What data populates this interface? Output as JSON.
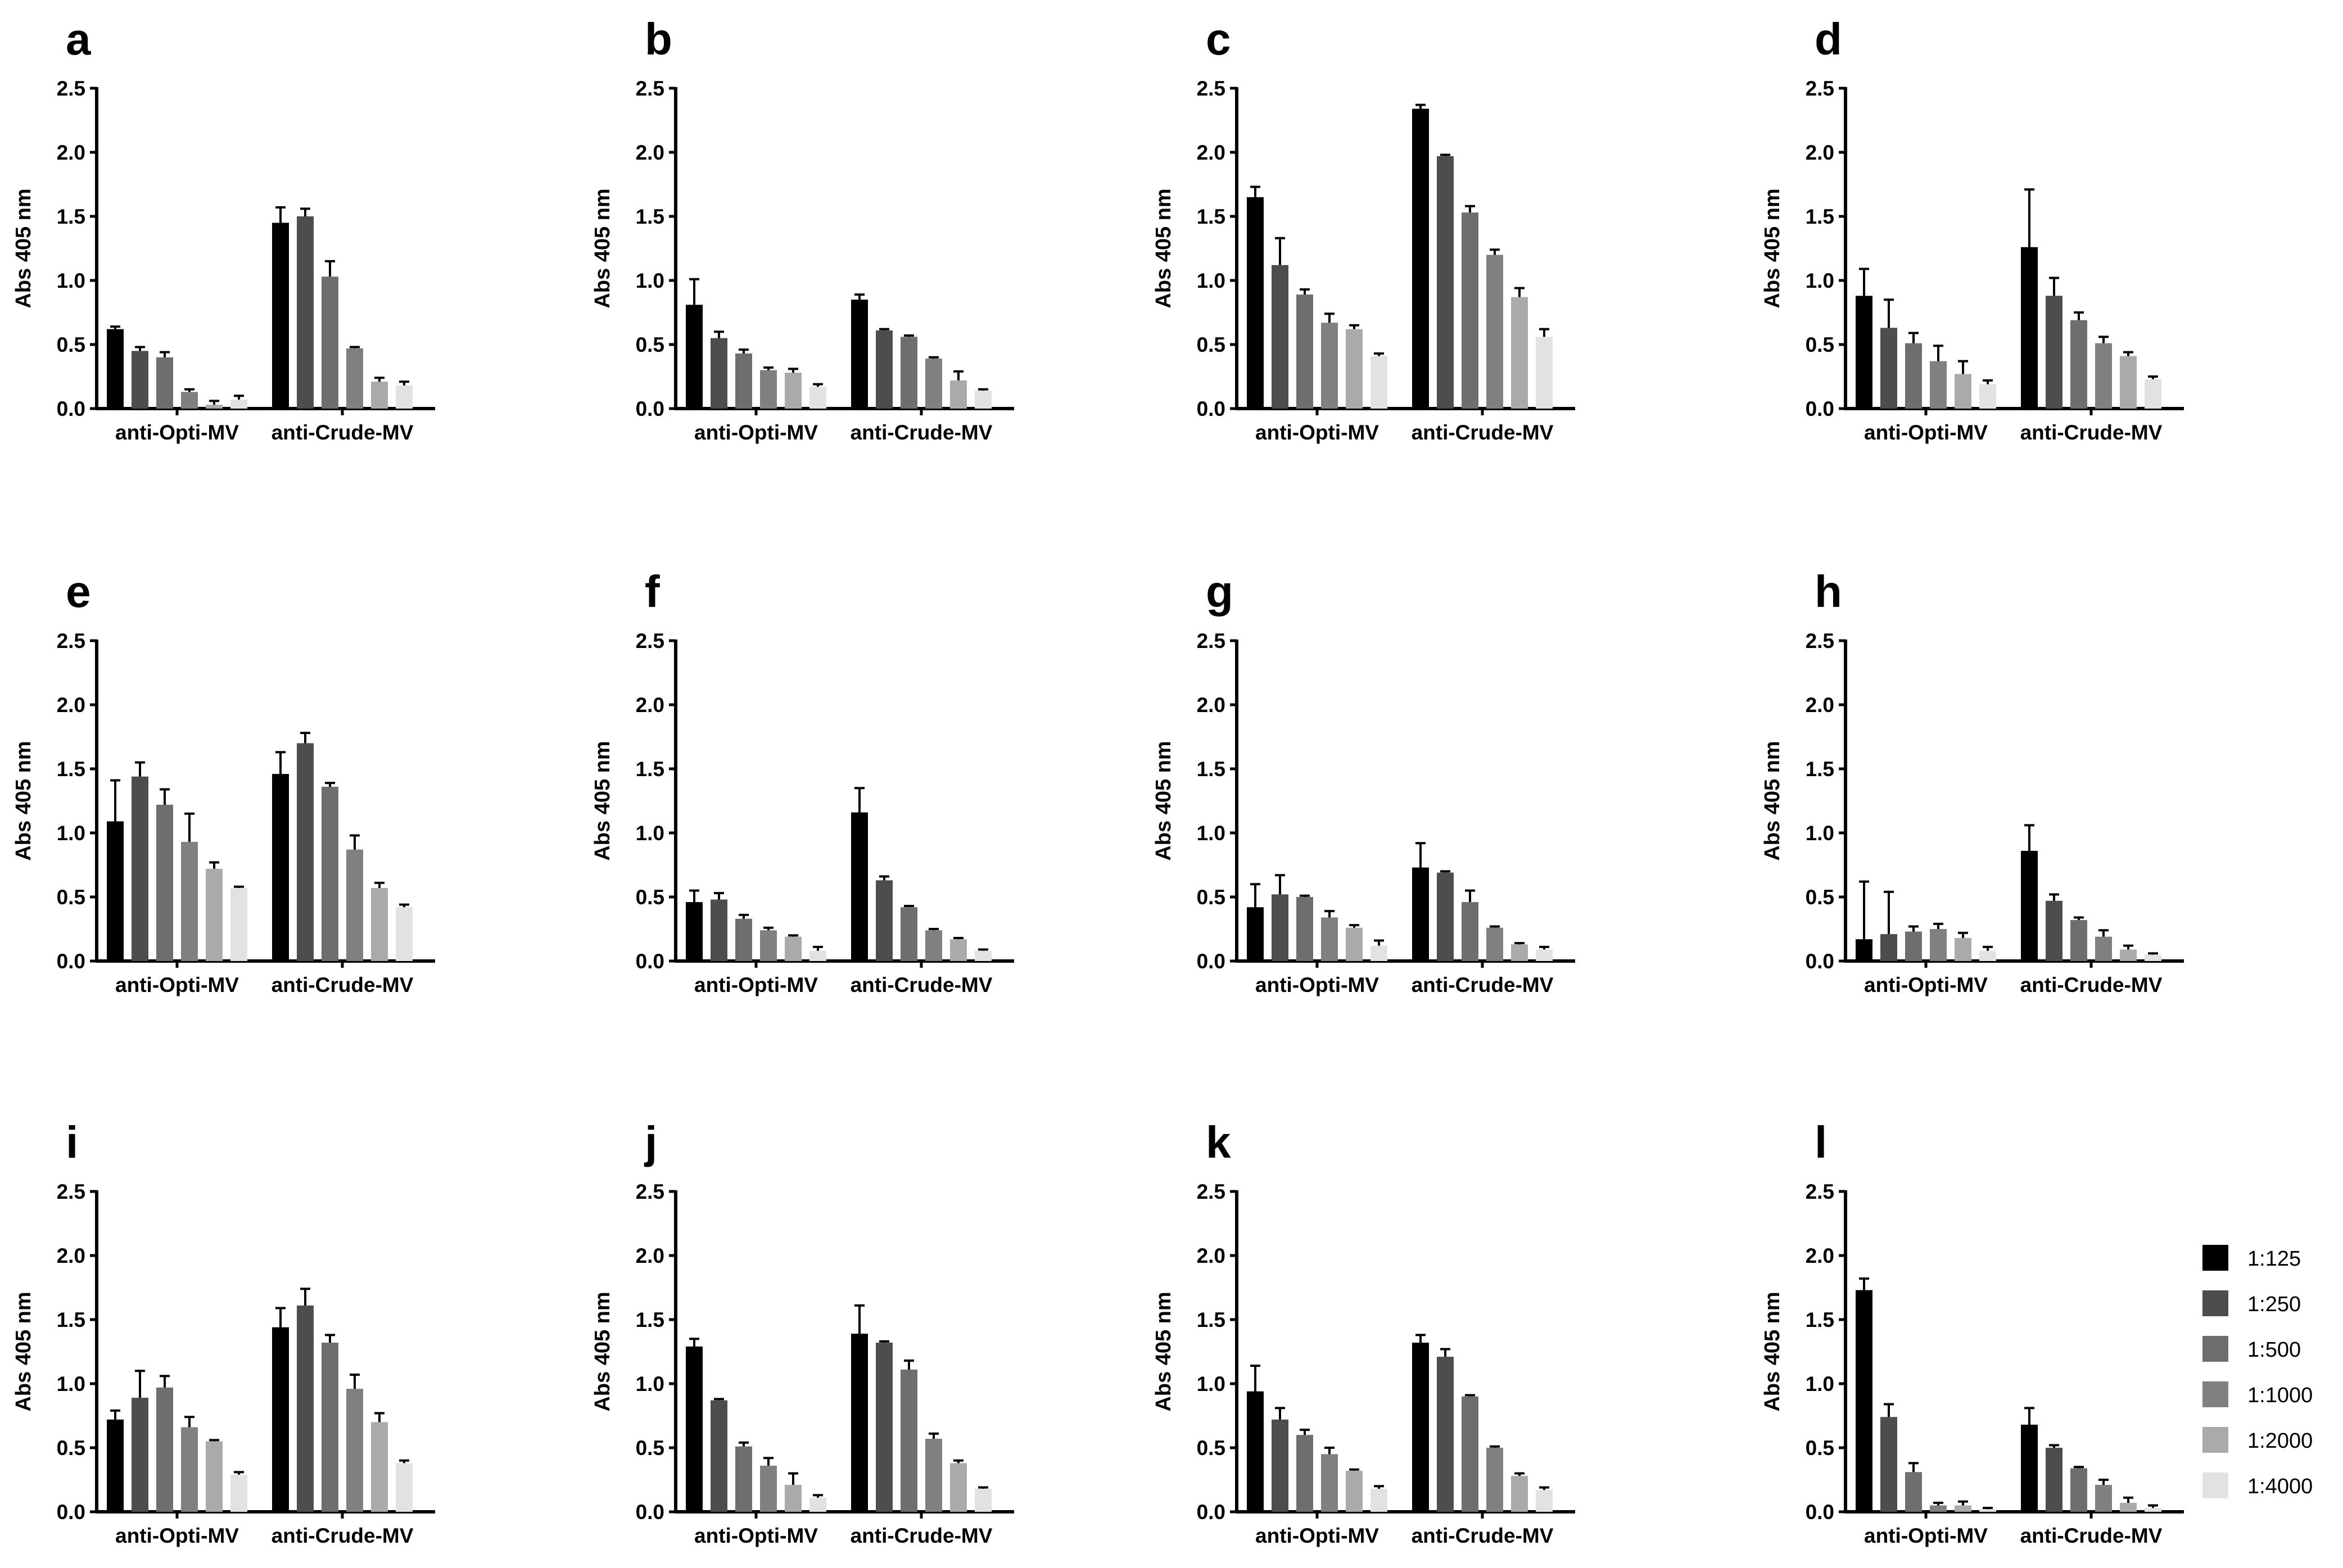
{
  "figure": {
    "legend": [
      {
        "label": "1:125",
        "color": "#000000"
      },
      {
        "label": "1:250",
        "color": "#4d4d4d"
      },
      {
        "label": "1:500",
        "color": "#6e6e6e"
      },
      {
        "label": "1:1000",
        "color": "#808080"
      },
      {
        "label": "1:2000",
        "color": "#aaaaaa"
      },
      {
        "label": "1:4000",
        "color": "#e2e2e2"
      }
    ]
  },
  "chart_data": [
    {
      "panel": "a",
      "type": "bar",
      "ylabel": "Abs 405 nm",
      "ylim": [
        0,
        2.5
      ],
      "yticks": [
        "0.0",
        "0.5",
        "1.0",
        "1.5",
        "2.0",
        "2.5"
      ],
      "categories": [
        "anti-Opti-MV",
        "anti-Crude-MV"
      ],
      "values": [
        [
          0.62,
          0.45,
          0.4,
          0.13,
          0.03,
          0.07
        ],
        [
          1.45,
          1.5,
          1.03,
          0.47,
          0.21,
          0.18
        ]
      ],
      "errors": [
        [
          0.02,
          0.03,
          0.04,
          0.02,
          0.03,
          0.03
        ],
        [
          0.12,
          0.06,
          0.12,
          0.01,
          0.03,
          0.03
        ]
      ]
    },
    {
      "panel": "b",
      "type": "bar",
      "ylabel": "Abs 405 nm",
      "ylim": [
        0,
        2.5
      ],
      "yticks": [
        "0.0",
        "0.5",
        "1.0",
        "1.5",
        "2.0",
        "2.5"
      ],
      "categories": [
        "anti-Opti-MV",
        "anti-Crude-MV"
      ],
      "values": [
        [
          0.81,
          0.55,
          0.43,
          0.3,
          0.28,
          0.17
        ],
        [
          0.85,
          0.61,
          0.56,
          0.39,
          0.22,
          0.14
        ]
      ],
      "errors": [
        [
          0.2,
          0.05,
          0.03,
          0.02,
          0.03,
          0.02
        ],
        [
          0.04,
          0.01,
          0.01,
          0.01,
          0.07,
          0.01
        ]
      ]
    },
    {
      "panel": "c",
      "type": "bar",
      "ylabel": "Abs 405 nm",
      "ylim": [
        0,
        2.5
      ],
      "yticks": [
        "0.0",
        "0.5",
        "1.0",
        "1.5",
        "2.0",
        "2.5"
      ],
      "categories": [
        "anti-Opti-MV",
        "anti-Crude-MV"
      ],
      "values": [
        [
          1.65,
          1.12,
          0.89,
          0.67,
          0.62,
          0.41
        ],
        [
          2.34,
          1.97,
          1.53,
          1.2,
          0.87,
          0.56
        ]
      ],
      "errors": [
        [
          0.08,
          0.21,
          0.04,
          0.07,
          0.03,
          0.02
        ],
        [
          0.03,
          0.01,
          0.05,
          0.04,
          0.07,
          0.06
        ]
      ]
    },
    {
      "panel": "d",
      "type": "bar",
      "ylabel": "Abs 405 nm",
      "ylim": [
        0,
        2.5
      ],
      "yticks": [
        "0.0",
        "0.5",
        "1.0",
        "1.5",
        "2.0",
        "2.5"
      ],
      "categories": [
        "anti-Opti-MV",
        "anti-Crude-MV"
      ],
      "values": [
        [
          0.88,
          0.63,
          0.51,
          0.37,
          0.27,
          0.19
        ],
        [
          1.26,
          0.88,
          0.69,
          0.51,
          0.41,
          0.23
        ]
      ],
      "errors": [
        [
          0.21,
          0.22,
          0.08,
          0.12,
          0.1,
          0.03
        ],
        [
          0.45,
          0.14,
          0.06,
          0.05,
          0.03,
          0.02
        ]
      ]
    },
    {
      "panel": "e",
      "type": "bar",
      "ylabel": "Abs 405 nm",
      "ylim": [
        0,
        2.5
      ],
      "yticks": [
        "0.0",
        "0.5",
        "1.0",
        "1.5",
        "2.0",
        "2.5"
      ],
      "categories": [
        "anti-Opti-MV",
        "anti-Crude-MV"
      ],
      "values": [
        [
          1.09,
          1.44,
          1.22,
          0.93,
          0.72,
          0.57
        ],
        [
          1.46,
          1.7,
          1.36,
          0.87,
          0.57,
          0.42
        ]
      ],
      "errors": [
        [
          0.32,
          0.11,
          0.12,
          0.22,
          0.05,
          0.01
        ],
        [
          0.17,
          0.08,
          0.03,
          0.11,
          0.04,
          0.02
        ]
      ]
    },
    {
      "panel": "f",
      "type": "bar",
      "ylabel": "Abs 405 nm",
      "ylim": [
        0,
        2.5
      ],
      "yticks": [
        "0.0",
        "0.5",
        "1.0",
        "1.5",
        "2.0",
        "2.5"
      ],
      "categories": [
        "anti-Opti-MV",
        "anti-Crude-MV"
      ],
      "values": [
        [
          0.46,
          0.48,
          0.33,
          0.24,
          0.19,
          0.08
        ],
        [
          1.16,
          0.63,
          0.42,
          0.24,
          0.17,
          0.08
        ]
      ],
      "errors": [
        [
          0.09,
          0.05,
          0.03,
          0.02,
          0.01,
          0.03
        ],
        [
          0.19,
          0.03,
          0.01,
          0.01,
          0.01,
          0.01
        ]
      ]
    },
    {
      "panel": "g",
      "type": "bar",
      "ylabel": "Abs 405 nm",
      "ylim": [
        0,
        2.5
      ],
      "yticks": [
        "0.0",
        "0.5",
        "1.0",
        "1.5",
        "2.0",
        "2.5"
      ],
      "categories": [
        "anti-Opti-MV",
        "anti-Crude-MV"
      ],
      "values": [
        [
          0.42,
          0.52,
          0.5,
          0.34,
          0.26,
          0.12
        ],
        [
          0.73,
          0.69,
          0.46,
          0.26,
          0.13,
          0.09
        ]
      ],
      "errors": [
        [
          0.18,
          0.15,
          0.01,
          0.05,
          0.02,
          0.04
        ],
        [
          0.19,
          0.01,
          0.09,
          0.01,
          0.01,
          0.02
        ]
      ]
    },
    {
      "panel": "h",
      "type": "bar",
      "ylabel": "Abs 405 nm",
      "ylim": [
        0,
        2.5
      ],
      "yticks": [
        "0.0",
        "0.5",
        "1.0",
        "1.5",
        "2.0",
        "2.5"
      ],
      "categories": [
        "anti-Opti-MV",
        "anti-Crude-MV"
      ],
      "values": [
        [
          0.17,
          0.21,
          0.23,
          0.25,
          0.18,
          0.08
        ],
        [
          0.86,
          0.47,
          0.32,
          0.19,
          0.09,
          0.05
        ]
      ],
      "errors": [
        [
          0.45,
          0.33,
          0.04,
          0.04,
          0.04,
          0.03
        ],
        [
          0.2,
          0.05,
          0.02,
          0.05,
          0.03,
          0.01
        ]
      ]
    },
    {
      "panel": "i",
      "type": "bar",
      "ylabel": "Abs 405 nm",
      "ylim": [
        0,
        2.5
      ],
      "yticks": [
        "0.0",
        "0.5",
        "1.0",
        "1.5",
        "2.0",
        "2.5"
      ],
      "categories": [
        "anti-Opti-MV",
        "anti-Crude-MV"
      ],
      "values": [
        [
          0.72,
          0.89,
          0.97,
          0.66,
          0.55,
          0.29
        ],
        [
          1.44,
          1.61,
          1.32,
          0.96,
          0.7,
          0.38
        ]
      ],
      "errors": [
        [
          0.07,
          0.21,
          0.09,
          0.08,
          0.01,
          0.02
        ],
        [
          0.15,
          0.13,
          0.06,
          0.11,
          0.07,
          0.02
        ]
      ]
    },
    {
      "panel": "j",
      "type": "bar",
      "ylabel": "Abs 405 nm",
      "ylim": [
        0,
        2.5
      ],
      "yticks": [
        "0.0",
        "0.5",
        "1.0",
        "1.5",
        "2.0",
        "2.5"
      ],
      "categories": [
        "anti-Opti-MV",
        "anti-Crude-MV"
      ],
      "values": [
        [
          1.29,
          0.87,
          0.51,
          0.36,
          0.21,
          0.11
        ],
        [
          1.39,
          1.32,
          1.11,
          0.57,
          0.38,
          0.18
        ]
      ],
      "errors": [
        [
          0.06,
          0.01,
          0.03,
          0.06,
          0.09,
          0.02
        ],
        [
          0.22,
          0.01,
          0.07,
          0.04,
          0.02,
          0.01
        ]
      ]
    },
    {
      "panel": "k",
      "type": "bar",
      "ylabel": "Abs 405 nm",
      "ylim": [
        0,
        2.5
      ],
      "yticks": [
        "0.0",
        "0.5",
        "1.0",
        "1.5",
        "2.0",
        "2.5"
      ],
      "categories": [
        "anti-Opti-MV",
        "anti-Crude-MV"
      ],
      "values": [
        [
          0.94,
          0.72,
          0.6,
          0.45,
          0.32,
          0.18
        ],
        [
          1.32,
          1.21,
          0.9,
          0.5,
          0.28,
          0.17
        ]
      ],
      "errors": [
        [
          0.2,
          0.09,
          0.04,
          0.05,
          0.01,
          0.02
        ],
        [
          0.06,
          0.06,
          0.01,
          0.01,
          0.02,
          0.02
        ]
      ]
    },
    {
      "panel": "l",
      "type": "bar",
      "ylabel": "Abs 405 nm",
      "ylim": [
        0,
        2.5
      ],
      "yticks": [
        "0.0",
        "0.5",
        "1.0",
        "1.5",
        "2.0",
        "2.5"
      ],
      "categories": [
        "anti-Opti-MV",
        "anti-Crude-MV"
      ],
      "values": [
        [
          1.73,
          0.74,
          0.31,
          0.05,
          0.05,
          0.02
        ],
        [
          0.68,
          0.5,
          0.34,
          0.21,
          0.07,
          0.03
        ]
      ],
      "errors": [
        [
          0.09,
          0.1,
          0.07,
          0.02,
          0.03,
          0.01
        ],
        [
          0.13,
          0.02,
          0.01,
          0.04,
          0.04,
          0.02
        ]
      ]
    }
  ]
}
